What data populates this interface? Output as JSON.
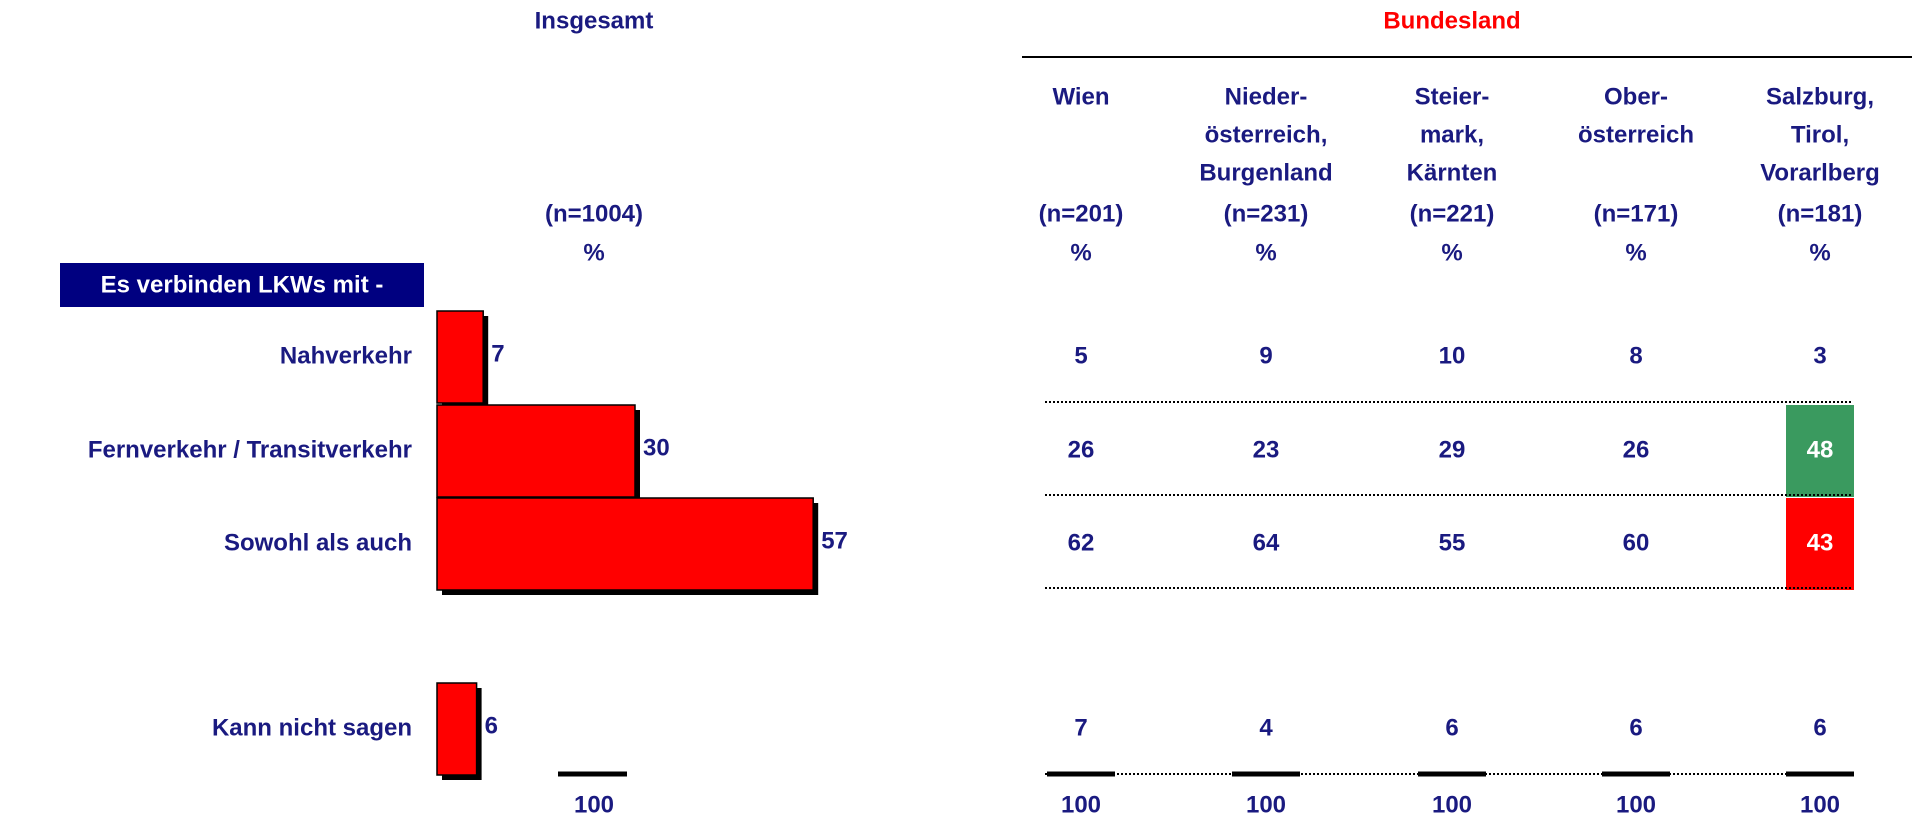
{
  "chart_data": {
    "type": "bar",
    "title": "Insgesamt",
    "n_label": "(n=1004)",
    "unit_label": "%",
    "label_box": "Es verbinden LKWs mit -",
    "categories": [
      "Nahverkehr",
      "Fernverkehr / Transitverkehr",
      "Sowohl als auch",
      "Kann nicht sagen"
    ],
    "values": [
      7,
      30,
      57,
      6
    ],
    "color": "#ff0000",
    "total": 100
  },
  "table": {
    "title": "Bundesland",
    "columns": [
      {
        "lines": [
          "Wien"
        ],
        "n": "(n=201)",
        "unit": "%"
      },
      {
        "lines": [
          "Nieder-",
          "österreich,",
          "Burgenland"
        ],
        "n": "(n=231)",
        "unit": "%"
      },
      {
        "lines": [
          "Steier-",
          "mark,",
          "Kärnten"
        ],
        "n": "(n=221)",
        "unit": "%"
      },
      {
        "lines": [
          "Ober-",
          "österreich"
        ],
        "n": "(n=171)",
        "unit": "%"
      },
      {
        "lines": [
          "Salzburg,",
          "Tirol,",
          "Vorarlberg"
        ],
        "n": "(n=181)",
        "unit": "%"
      }
    ],
    "rows": [
      [
        5,
        9,
        10,
        8,
        3
      ],
      [
        26,
        23,
        29,
        26,
        48
      ],
      [
        62,
        64,
        55,
        60,
        43
      ],
      [
        7,
        4,
        6,
        6,
        6
      ]
    ],
    "totals": [
      100,
      100,
      100,
      100,
      100
    ],
    "highlights": [
      {
        "row": 1,
        "col": 4,
        "color": "#3a9a5f"
      },
      {
        "row": 2,
        "col": 4,
        "color": "#ff0000"
      }
    ]
  }
}
